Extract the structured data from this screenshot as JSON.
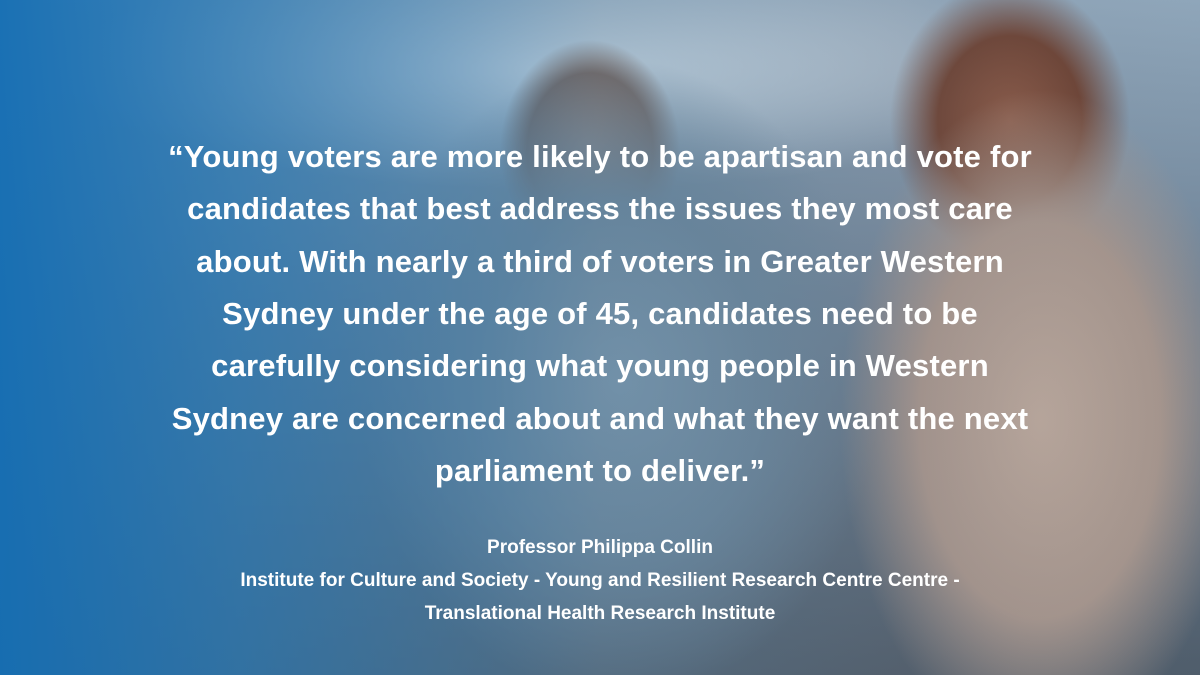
{
  "quote": {
    "lines": [
      "“Young voters are more likely to be apartisan and vote for",
      "candidates that best address the issues they most care",
      "about. With nearly a third of voters in Greater Western",
      "Sydney under the age of 45, candidates need to be",
      "carefully considering what young people in Western",
      "Sydney are concerned about and what they want the next",
      "parliament to deliver.”"
    ]
  },
  "attribution": {
    "name": "Professor Philippa Collin",
    "affiliation": [
      "Institute for Culture and Society - Young and Resilient Research Centre Centre -",
      "Translational Health Research Institute"
    ]
  }
}
